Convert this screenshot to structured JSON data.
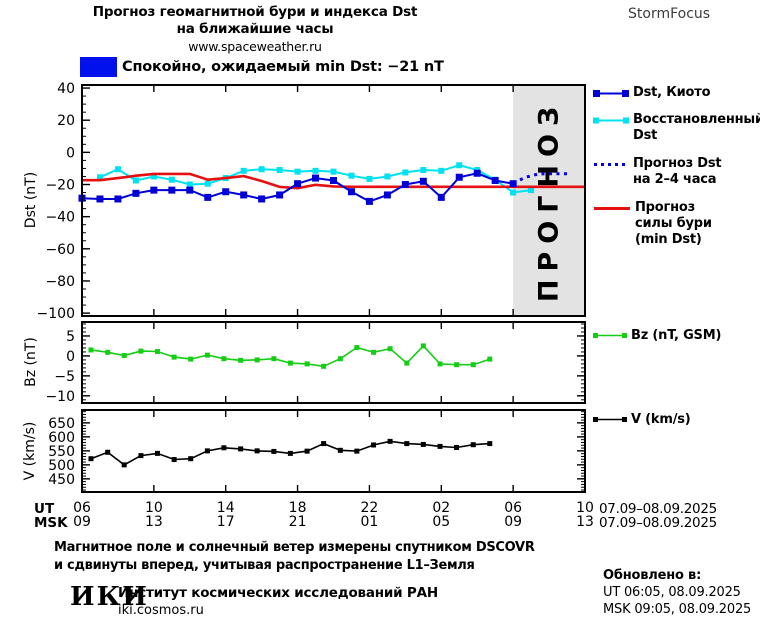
{
  "header": {
    "title_line1": "Прогноз геомагнитной бури и индекса Dst",
    "title_line2": "на ближайшие часы",
    "title_line3": "www.spaceweather.ru",
    "brand": "StormFocus"
  },
  "status": {
    "label": "Спокойно, ожидаемый min Dst: −21 nT",
    "swatch_color": "#0011ee"
  },
  "legend": {
    "kyoto": "Dst, Киото",
    "restored_line1": "Восстановленный",
    "restored_line2": "Dst",
    "forecast_line1": "Прогноз Dst",
    "forecast_line2": "на 2–4 часа",
    "storm_line1": "Прогноз",
    "storm_line2": "силы бури",
    "storm_line3": "(min Dst)",
    "bz": "Bz (nT, GSM)",
    "v": "V (km/s)"
  },
  "axis": {
    "ut_label": "UT",
    "msk_label": "MSK",
    "ut_date_range": "07.09–08.09.2025",
    "msk_date_range": "07.09–08.09.2025"
  },
  "footer": {
    "note_line1": "Магнитное поле и солнечный ветер измерены спутником DSCOVR",
    "note_line2": "и сдвинуты вперед, учитывая распространение L1–Земля",
    "logo": "ИКИ",
    "institute": "Институт космических исследований РАН",
    "site": "iki.cosmos.ru",
    "updated_label": "Обновлено в:",
    "updated_ut": "UT   06:05, 08.09.2025",
    "updated_msk": "MSK 09:05, 08.09.2025"
  },
  "chart_data": [
    {
      "type": "line",
      "ylabel": "Dst (nT)",
      "xlabel": "",
      "xlim": [
        6,
        34
      ],
      "ylim": [
        -101.8,
        41.9
      ],
      "yticks": [
        40,
        20,
        0,
        -20,
        -40,
        -60,
        -80,
        -100
      ],
      "y_minor_step": 5,
      "xticks": [
        6,
        10,
        14,
        18,
        22,
        26,
        30,
        34
      ],
      "xtick_labels_ut": [
        "06",
        "10",
        "14",
        "18",
        "22",
        "02",
        "06",
        "10"
      ],
      "xtick_labels_msk": [
        "09",
        "13",
        "17",
        "21",
        "01",
        "05",
        "09",
        "13"
      ],
      "grid": false,
      "legend_position": "right",
      "forecast_region": {
        "x_from": 30,
        "x_to": 34,
        "label": "ПРОГНОЗ",
        "fill": "#e3e3e3",
        "label_color": "#c6c6c6"
      },
      "series": [
        {
          "id": "restored-dst",
          "name": "Восстановленный Dst",
          "color": "#00e1f2",
          "marker_size": 6,
          "line_width": 2,
          "x": [
            7,
            8,
            9,
            10,
            11,
            12,
            13,
            14,
            15,
            16,
            17,
            18,
            19,
            20,
            21,
            22,
            23,
            24,
            25,
            26,
            27,
            28,
            29,
            30,
            31
          ],
          "values": [
            -15.5,
            -10.5,
            -17.5,
            -15,
            -17,
            -20,
            -19.5,
            -16,
            -11.5,
            -10.5,
            -11,
            -12,
            -11.5,
            -12,
            -14.5,
            -16.5,
            -15,
            -12.5,
            -11,
            -11.5,
            -8,
            -11,
            -17,
            -25,
            -23.5
          ]
        },
        {
          "id": "storm-forecast",
          "name": "Прогноз силы бури (min Dst)",
          "color": "#e51010",
          "marker_size": 0,
          "line_width": 2.6,
          "x": [
            6,
            7,
            8,
            9,
            10,
            11,
            12,
            13,
            14,
            15,
            16,
            17,
            18,
            19,
            20,
            21,
            22,
            23,
            24,
            25,
            26,
            27,
            28,
            29,
            30,
            31,
            32,
            33,
            34
          ],
          "values": [
            -17.3,
            -17.3,
            -16,
            -14.5,
            -13.4,
            -13.4,
            -13.4,
            -17,
            -16,
            -14.8,
            -17.8,
            -21.5,
            -22.3,
            -20.2,
            -21.2,
            -21.4,
            -21.4,
            -21.4,
            -21.4,
            -21.4,
            -21.4,
            -21.4,
            -21.4,
            -21.4,
            -21.4,
            -21.4,
            -21.4,
            -21.4,
            -21.4
          ]
        },
        {
          "id": "dst-kyoto",
          "name": "Dst, Киото",
          "color": "#0000d6",
          "marker_size": 7,
          "line_width": 2,
          "x": [
            6,
            7,
            8,
            9,
            10,
            11,
            12,
            13,
            14,
            15,
            16,
            17,
            18,
            19,
            20,
            21,
            22,
            23,
            24,
            25,
            26,
            27,
            28,
            29,
            30
          ],
          "values": [
            -28.5,
            -29,
            -29,
            -25.5,
            -23.5,
            -23.5,
            -23.5,
            -28,
            -24.5,
            -26.5,
            -29,
            -26.5,
            -19.5,
            -16,
            -17.5,
            -24.5,
            -30.5,
            -26.5,
            -20,
            -18,
            -28,
            -15.5,
            -13,
            -17.5,
            -19.5
          ]
        },
        {
          "id": "dst-forecast",
          "name": "Прогноз Dst на 2–4 часа",
          "color": "#0000e6",
          "marker_size": 0,
          "line_width": 3,
          "dash": "3 4.5",
          "x": [
            30,
            30.7,
            31.4,
            32,
            32.6,
            33.2
          ],
          "values": [
            -19,
            -15.5,
            -13.4,
            -13.3,
            -13.3,
            -13.3
          ]
        }
      ]
    },
    {
      "type": "line",
      "ylabel": "Bz (nT)",
      "xlabel": "",
      "xlim": [
        6,
        34
      ],
      "ylim": [
        -11.8,
        8.5
      ],
      "yticks": [
        5,
        0,
        -5,
        -10
      ],
      "y_minor_step": 1,
      "xticks": [
        6,
        10,
        14,
        18,
        22,
        26,
        30,
        34
      ],
      "grid": false,
      "series": [
        {
          "id": "bz",
          "name": "Bz (nT, GSM)",
          "color": "#15cd15",
          "marker_size": 5,
          "line_width": 1.6,
          "x": [
            6.5,
            7.43,
            8.35,
            9.28,
            10.2,
            11.13,
            12.05,
            12.98,
            13.9,
            14.83,
            15.75,
            16.68,
            17.6,
            18.53,
            19.45,
            20.38,
            21.3,
            22.23,
            23.15,
            24.08,
            25.0,
            25.93,
            26.85,
            27.78,
            28.7
          ],
          "values": [
            1.5,
            0.9,
            0.1,
            1.2,
            1.1,
            -0.3,
            -0.8,
            0.2,
            -0.7,
            -1.1,
            -1.0,
            -0.7,
            -1.8,
            -2.0,
            -2.6,
            -0.7,
            2.1,
            0.9,
            1.8,
            -1.8,
            2.5,
            -2.0,
            -2.2,
            -2.2,
            -0.8
          ]
        }
      ]
    },
    {
      "type": "line",
      "ylabel": "V (km/s)",
      "xlabel": "",
      "xlim": [
        6,
        34
      ],
      "ylim": [
        403,
        696
      ],
      "yticks": [
        650,
        600,
        550,
        500,
        450
      ],
      "y_minor_step": 10,
      "xticks": [
        6,
        10,
        14,
        18,
        22,
        26,
        30,
        34
      ],
      "grid": false,
      "series": [
        {
          "id": "v",
          "name": "V (km/s)",
          "color": "#000000",
          "marker_size": 5,
          "line_width": 1.6,
          "x": [
            6.5,
            7.43,
            8.35,
            9.28,
            10.2,
            11.13,
            12.05,
            12.98,
            13.9,
            14.83,
            15.75,
            16.68,
            17.6,
            18.53,
            19.45,
            20.38,
            21.3,
            22.23,
            23.15,
            24.08,
            25.0,
            25.93,
            26.85,
            27.78,
            28.7
          ],
          "values": [
            522,
            545,
            500,
            533,
            541,
            519,
            522,
            550,
            561,
            557,
            550,
            548,
            541,
            549,
            576,
            552,
            549,
            571,
            584,
            576,
            573,
            566,
            562,
            572,
            576
          ]
        }
      ]
    }
  ]
}
